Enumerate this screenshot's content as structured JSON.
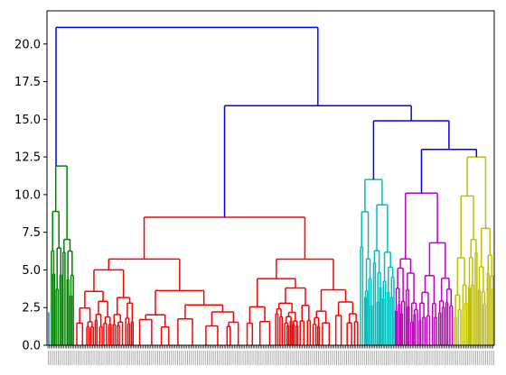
{
  "chart_data": {
    "type": "dendrogram",
    "title": "",
    "xlabel": "",
    "ylabel": "",
    "ylim": [
      0,
      22.2
    ],
    "yticks": [
      0.0,
      2.5,
      5.0,
      7.5,
      10.0,
      12.5,
      15.0,
      17.5,
      20.0
    ],
    "ytick_labels": [
      "0.0",
      "2.5",
      "5.0",
      "7.5",
      "10.0",
      "12.5",
      "15.0",
      "17.5",
      "20.0"
    ],
    "above_threshold_color": "#0000ff",
    "clusters": [
      {
        "color": "#1f77b4",
        "merge_height": 2.2
      },
      {
        "color": "#008000",
        "merge_height": 11.9
      },
      {
        "color": "#ff0000",
        "merge_height": 8.5
      },
      {
        "color": "#00bfbf",
        "merge_height": 11.0
      },
      {
        "color": "#bf00bf",
        "merge_height": 10.1
      },
      {
        "color": "#bfbf00",
        "merge_height": 12.5
      }
    ],
    "upper_merges": [
      21.1,
      15.9,
      14.9,
      13.0,
      12.5
    ]
  }
}
